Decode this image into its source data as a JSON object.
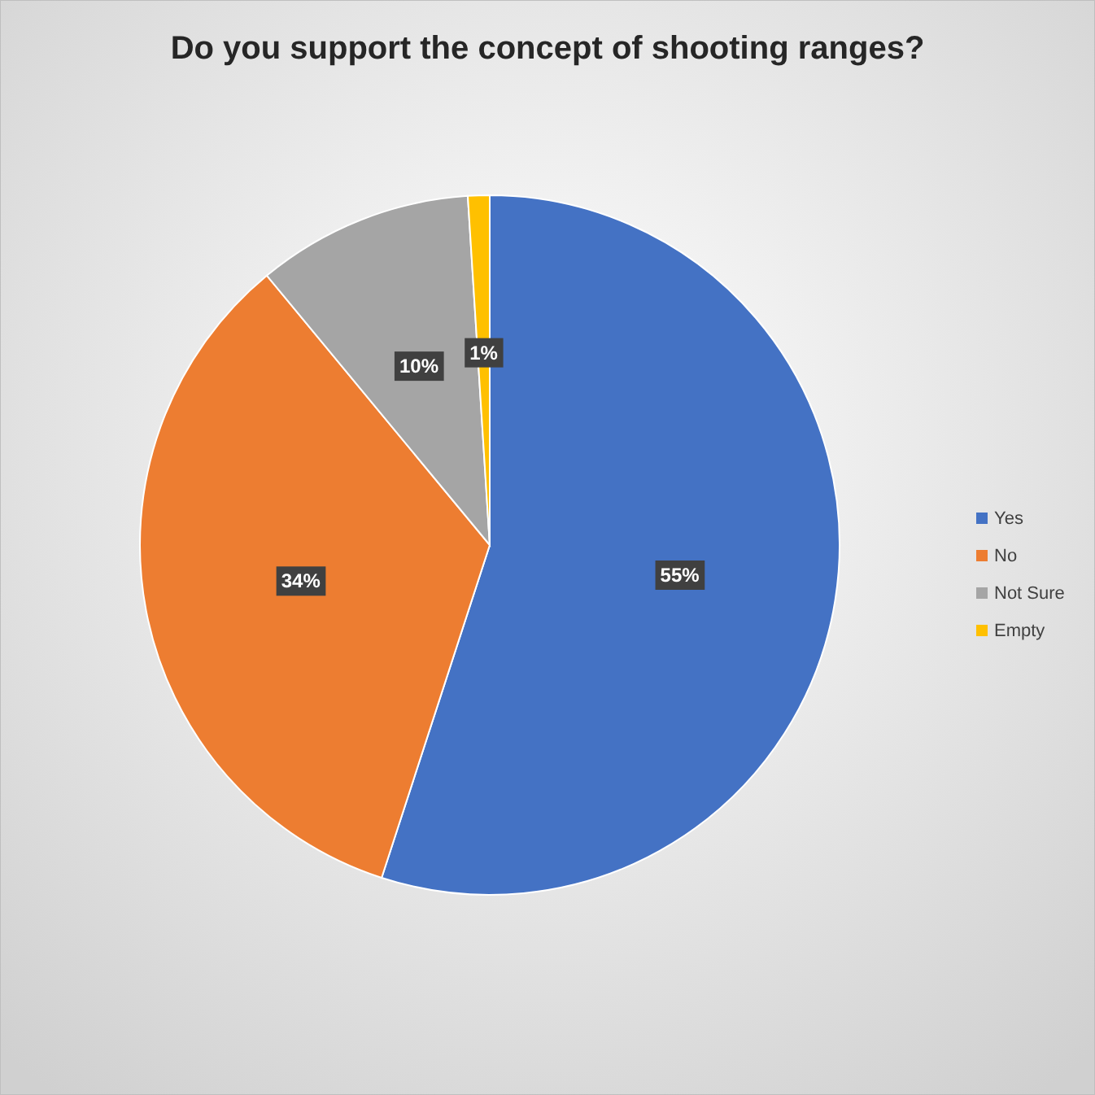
{
  "chart_data": {
    "type": "pie",
    "title": "Do you support the concept of shooting ranges?",
    "categories": [
      "Yes",
      "No",
      "Not Sure",
      "Empty"
    ],
    "values": [
      55,
      34,
      10,
      1
    ],
    "value_labels": [
      "55%",
      "34%",
      "10%",
      "1%"
    ],
    "colors": [
      "#4472c4",
      "#ed7d31",
      "#a5a5a5",
      "#ffc000"
    ],
    "legend": "right"
  }
}
